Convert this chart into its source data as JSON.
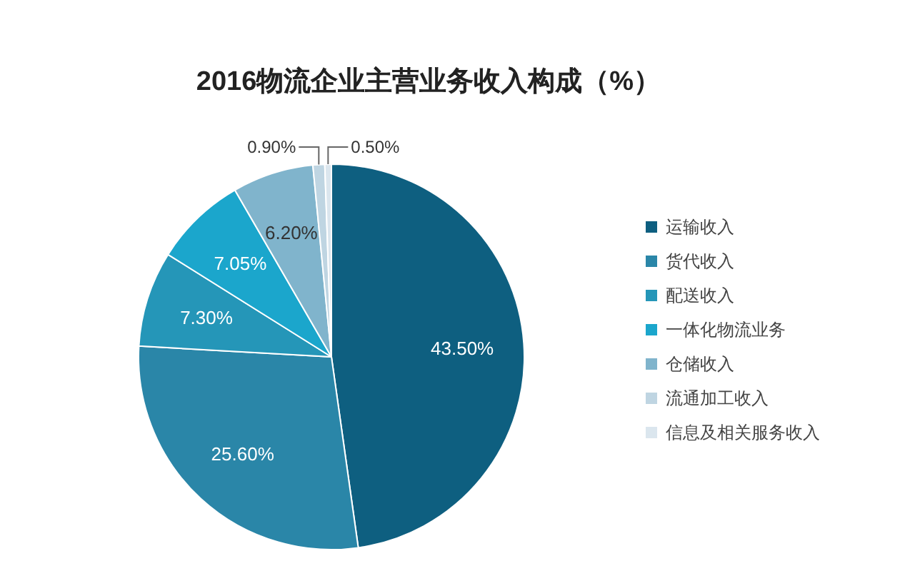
{
  "chart_data": {
    "type": "pie",
    "title": "2016物流企业主营业务收入构成（%）",
    "categories": [
      "运输收入",
      "货代收入",
      "配送收入",
      "一体化物流业务",
      "仓储收入",
      "流通加工收入",
      "信息及相关服务收入"
    ],
    "values": [
      43.5,
      25.6,
      7.3,
      7.05,
      6.2,
      0.9,
      0.5
    ],
    "value_labels": [
      "43.50%",
      "25.60%",
      "7.30%",
      "7.05%",
      "6.20%",
      "0.90%",
      "0.50%"
    ],
    "colors": [
      "#0e5f80",
      "#2a86a8",
      "#2596b8",
      "#1ba6cc",
      "#80b4cc",
      "#bfd5e2",
      "#dbe6ee"
    ],
    "legend": "right"
  }
}
